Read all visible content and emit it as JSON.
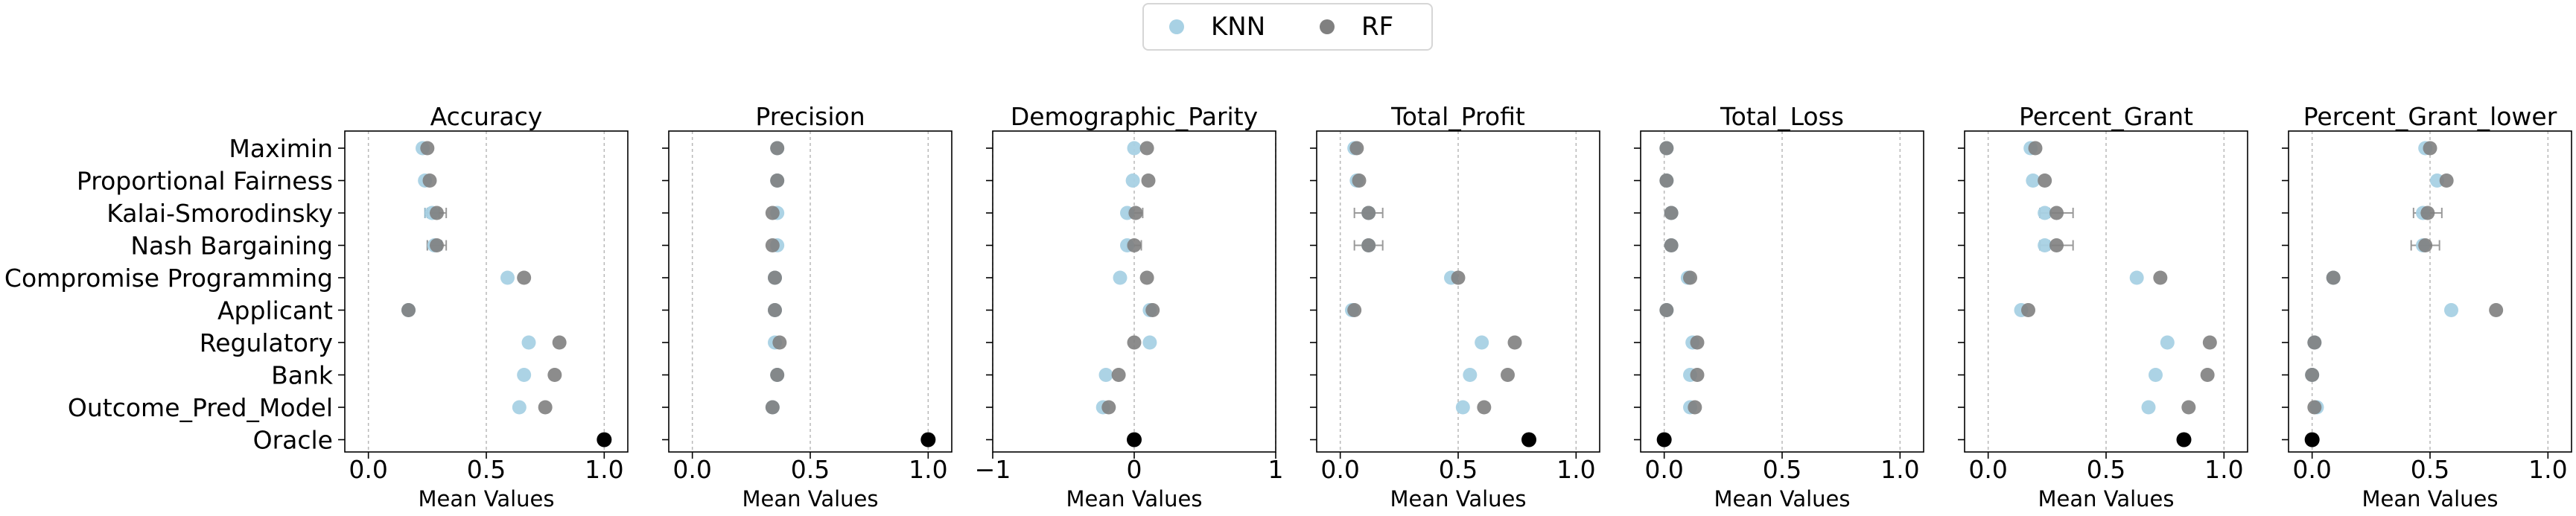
{
  "legend": {
    "knn": {
      "label": "KNN",
      "color": "#a8d1e4"
    },
    "rf": {
      "label": "RF",
      "color": "#808080"
    }
  },
  "oracle_color": "#000000",
  "chart_data": {
    "type": "scatter",
    "shared_categories": [
      "Maximin",
      "Proportional Fairness",
      "Kalai-Smorodinsky",
      "Nash Bargaining",
      "Compromise Programming",
      "Applicant",
      "Regulatory",
      "Bank",
      "Outcome_Pred_Model",
      "Oracle"
    ],
    "xlabel": "Mean Values",
    "grid_x": true,
    "legend_position": "top-center",
    "panels": [
      {
        "title": "Accuracy",
        "xlim": [
          -0.1,
          1.1
        ],
        "xticks": [
          0.0,
          0.5,
          1.0
        ],
        "xtick_labels": [
          "0.0",
          "0.5",
          "1.0"
        ],
        "knn": [
          0.23,
          0.24,
          0.27,
          0.28,
          0.59,
          0.17,
          0.68,
          0.66,
          0.64,
          null
        ],
        "rf": [
          0.25,
          0.26,
          0.29,
          0.29,
          0.66,
          0.17,
          0.81,
          0.79,
          0.75,
          null
        ],
        "knn_err": [
          0,
          0,
          0.03,
          0.03,
          0,
          0,
          0,
          0,
          0,
          0
        ],
        "rf_err": [
          0,
          0,
          0.04,
          0.04,
          0,
          0,
          0,
          0,
          0,
          0
        ],
        "oracle": 1.0
      },
      {
        "title": "Precision",
        "xlim": [
          -0.1,
          1.1
        ],
        "xticks": [
          0.0,
          0.5,
          1.0
        ],
        "xtick_labels": [
          "0.0",
          "0.5",
          "1.0"
        ],
        "knn": [
          0.36,
          0.36,
          0.36,
          0.36,
          0.35,
          0.35,
          0.35,
          0.36,
          0.34,
          null
        ],
        "rf": [
          0.36,
          0.36,
          0.34,
          0.34,
          0.35,
          0.35,
          0.37,
          0.36,
          0.34,
          null
        ],
        "knn_err": [
          0,
          0,
          0,
          0,
          0,
          0,
          0,
          0,
          0,
          0
        ],
        "rf_err": [
          0,
          0,
          0,
          0,
          0,
          0,
          0,
          0,
          0,
          0
        ],
        "oracle": 1.0
      },
      {
        "title": "Demographic_Parity",
        "xlim": [
          -1.0,
          1.0
        ],
        "xticks": [
          -1,
          0,
          1
        ],
        "xtick_labels": [
          "−1",
          "0",
          "1"
        ],
        "knn": [
          0.0,
          -0.01,
          -0.05,
          -0.05,
          -0.1,
          0.11,
          0.11,
          -0.2,
          -0.22,
          null
        ],
        "rf": [
          0.09,
          0.1,
          0.01,
          0.0,
          0.09,
          0.13,
          0.0,
          -0.11,
          -0.18,
          null
        ],
        "knn_err": [
          0,
          0,
          0,
          0,
          0,
          0,
          0,
          0,
          0,
          0
        ],
        "rf_err": [
          0,
          0,
          0.05,
          0.05,
          0,
          0,
          0,
          0,
          0,
          0
        ],
        "oracle": 0.0
      },
      {
        "title": "Total_Profit",
        "xlim": [
          -0.1,
          1.1
        ],
        "xticks": [
          0.0,
          0.5,
          1.0
        ],
        "xtick_labels": [
          "0.0",
          "0.5",
          "1.0"
        ],
        "knn": [
          0.06,
          0.07,
          0.12,
          0.12,
          0.47,
          0.05,
          0.6,
          0.55,
          0.52,
          null
        ],
        "rf": [
          0.07,
          0.08,
          0.12,
          0.12,
          0.5,
          0.06,
          0.74,
          0.71,
          0.61,
          null
        ],
        "knn_err": [
          0,
          0,
          0,
          0,
          0,
          0,
          0,
          0,
          0,
          0
        ],
        "rf_err": [
          0,
          0,
          0.06,
          0.06,
          0,
          0,
          0,
          0,
          0,
          0
        ],
        "oracle": 0.8
      },
      {
        "title": "Total_Loss",
        "xlim": [
          -0.1,
          1.1
        ],
        "xticks": [
          0.0,
          0.5,
          1.0
        ],
        "xtick_labels": [
          "0.0",
          "0.5",
          "1.0"
        ],
        "knn": [
          0.01,
          0.01,
          0.03,
          0.03,
          0.1,
          0.01,
          0.12,
          0.11,
          0.11,
          null
        ],
        "rf": [
          0.01,
          0.01,
          0.03,
          0.03,
          0.11,
          0.01,
          0.14,
          0.14,
          0.13,
          null
        ],
        "knn_err": [
          0,
          0,
          0,
          0,
          0,
          0,
          0,
          0,
          0,
          0
        ],
        "rf_err": [
          0,
          0,
          0,
          0,
          0,
          0,
          0,
          0,
          0,
          0
        ],
        "oracle": 0.0
      },
      {
        "title": "Percent_Grant",
        "xlim": [
          -0.1,
          1.1
        ],
        "xticks": [
          0.0,
          0.5,
          1.0
        ],
        "xtick_labels": [
          "0.0",
          "0.5",
          "1.0"
        ],
        "knn": [
          0.18,
          0.19,
          0.24,
          0.24,
          0.63,
          0.14,
          0.76,
          0.71,
          0.68,
          null
        ],
        "rf": [
          0.2,
          0.24,
          0.29,
          0.29,
          0.73,
          0.17,
          0.94,
          0.93,
          0.85,
          null
        ],
        "knn_err": [
          0,
          0,
          0.02,
          0.02,
          0,
          0,
          0,
          0,
          0,
          0
        ],
        "rf_err": [
          0,
          0,
          0.07,
          0.07,
          0,
          0,
          0,
          0,
          0,
          0
        ],
        "oracle": 0.83
      },
      {
        "title": "Percent_Grant_lower",
        "xlim": [
          -0.1,
          1.1
        ],
        "xticks": [
          0.0,
          0.5,
          1.0
        ],
        "xtick_labels": [
          "0.0",
          "0.5",
          "1.0"
        ],
        "knn": [
          0.48,
          0.53,
          0.47,
          0.47,
          0.09,
          0.59,
          0.01,
          0.0,
          0.02,
          null
        ],
        "rf": [
          0.5,
          0.57,
          0.49,
          0.48,
          0.09,
          0.78,
          0.01,
          0.0,
          0.01,
          null
        ],
        "knn_err": [
          0,
          0,
          0,
          0,
          0,
          0,
          0,
          0,
          0,
          0
        ],
        "rf_err": [
          0,
          0,
          0.06,
          0.06,
          0,
          0,
          0,
          0,
          0,
          0
        ],
        "oracle": 0.0
      }
    ]
  }
}
